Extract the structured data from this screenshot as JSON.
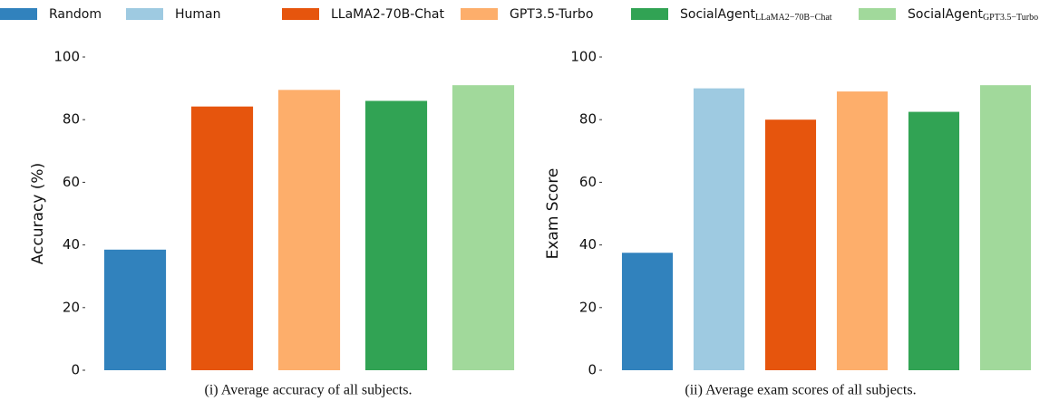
{
  "legend": [
    {
      "name": "Random",
      "color": "#3182bd"
    },
    {
      "name": "Human",
      "color": "#9ecae1"
    },
    {
      "name": "LLaMA2-70B-Chat",
      "color": "#e6550d"
    },
    {
      "name": "GPT3.5-Turbo",
      "color": "#fdae6b"
    },
    {
      "name": "SocialAgent",
      "subscript": "LLaMA2−70B−Chat",
      "color": "#31a354"
    },
    {
      "name": "SocialAgent",
      "subscript": "GPT3.5−Turbo",
      "color": "#a1d99b"
    }
  ],
  "chart_data": [
    {
      "type": "bar",
      "ylabel": "Accuracy (%)",
      "caption": "(i) Average accuracy of all subjects.",
      "values": [
        38.5,
        null,
        84.2,
        89.5,
        86,
        91
      ],
      "ylim": [
        0,
        100
      ],
      "yticks": [
        0,
        20,
        40,
        60,
        80,
        100
      ]
    },
    {
      "type": "bar",
      "ylabel": "Exam Score",
      "caption": "(ii) Average exam scores of all subjects.",
      "values": [
        37.5,
        90,
        80,
        89,
        82.5,
        91
      ],
      "ylim": [
        0,
        100
      ],
      "yticks": [
        0,
        20,
        40,
        60,
        80,
        100
      ]
    }
  ]
}
